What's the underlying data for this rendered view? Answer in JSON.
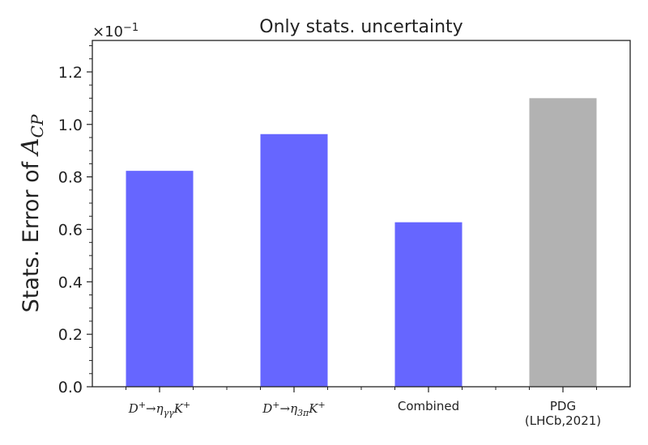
{
  "chart_data": {
    "type": "bar",
    "title": "Only stats. uncertainty",
    "ylabel": "Stats. Error of A_{CP}",
    "ylabel_text": "Stats. Error of ",
    "ylabel_math": "A",
    "ylabel_math_sub": "CP",
    "scale_label": "×10",
    "scale_exponent": "−1",
    "ylim": [
      0,
      1.32
    ],
    "yticks": [
      "0.0",
      "0.2",
      "0.4",
      "0.6",
      "0.8",
      "1.0",
      "1.2"
    ],
    "ytick_values": [
      0,
      0.2,
      0.4,
      0.6,
      0.8,
      1.0,
      1.2
    ],
    "categories": [
      {
        "label": "D⁺→η_{γγ}K⁺",
        "parts": [
          "D",
          "+",
          "→η",
          "γγ",
          "K",
          "+"
        ],
        "math": true
      },
      {
        "label": "D⁺→η_{3π}K⁺",
        "parts": [
          "D",
          "+",
          "→η",
          "3π",
          "K",
          "+"
        ],
        "math": true
      },
      {
        "label": "Combined",
        "lines": [
          "Combined"
        ],
        "math": false
      },
      {
        "label": "PDG (LHCb,2021)",
        "lines": [
          "PDG",
          "(LHCb,2021)"
        ],
        "math": false
      }
    ],
    "values": [
      0.823,
      0.963,
      0.627,
      1.1
    ],
    "colors": [
      "#6666ff",
      "#6666ff",
      "#6666ff",
      "#b2b2b2"
    ],
    "grid": false
  }
}
